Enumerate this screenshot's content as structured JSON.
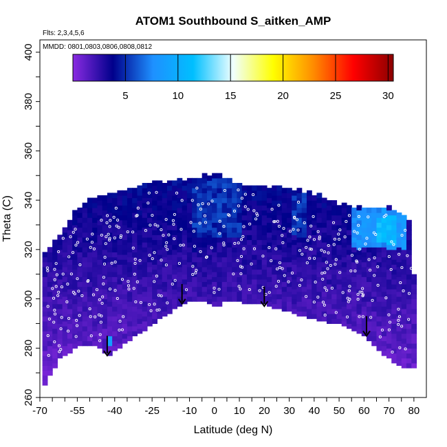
{
  "chart_data": {
    "type": "heatmap",
    "title": "ATOM1 Southbound S_aitken_AMP",
    "notes": {
      "flights": "Flts: 2,3,4,5,6",
      "dates": "MMDD: 0801,0803,0806,0808,0812"
    },
    "xlabel": "Latitude (deg N)",
    "ylabel": "Theta (C)",
    "xlim": [
      -70,
      85
    ],
    "ylim": [
      260,
      405
    ],
    "x_tick_labels": [
      "-70",
      "-55",
      "-40",
      "-25",
      "-10",
      "0",
      "10",
      "20",
      "30",
      "40",
      "50",
      "60",
      "70",
      "80"
    ],
    "y_tick_labels": [
      "260",
      "280",
      "300",
      "320",
      "340",
      "360",
      "380",
      "400"
    ],
    "colorbar": {
      "range": [
        0,
        30.5
      ],
      "tick_labels": [
        "5",
        "10",
        "15",
        "20",
        "25",
        "30"
      ],
      "colors": [
        "#8a2be2",
        "#00008b",
        "#1e90ff",
        "#00bfff",
        "#f0ffff",
        "#ffff00",
        "#ff8c00",
        "#ff0000",
        "#8b0000"
      ]
    },
    "bottom_boundary": [
      [
        -69,
        264
      ],
      [
        -62,
        276
      ],
      [
        -55,
        281
      ],
      [
        -47,
        282
      ],
      [
        -43,
        277
      ],
      [
        -35,
        283
      ],
      [
        -22,
        292
      ],
      [
        -13,
        298
      ],
      [
        -7,
        300
      ],
      [
        2,
        297
      ],
      [
        5,
        300
      ],
      [
        10,
        299
      ],
      [
        20,
        298
      ],
      [
        30,
        295
      ],
      [
        40,
        292
      ],
      [
        50,
        290
      ],
      [
        60,
        285
      ],
      [
        70,
        276
      ],
      [
        76,
        272
      ],
      [
        80,
        272
      ]
    ],
    "top_boundary": [
      [
        -69,
        318
      ],
      [
        -62,
        325
      ],
      [
        -56,
        335
      ],
      [
        -50,
        340
      ],
      [
        -40,
        342
      ],
      [
        -30,
        345
      ],
      [
        -20,
        347
      ],
      [
        -10,
        348
      ],
      [
        0,
        350
      ],
      [
        10,
        346
      ],
      [
        20,
        345
      ],
      [
        30,
        344
      ],
      [
        40,
        342
      ],
      [
        50,
        338
      ],
      [
        60,
        336
      ],
      [
        70,
        337
      ],
      [
        79,
        330
      ],
      [
        80,
        310
      ],
      [
        80,
        275
      ]
    ],
    "arrows": [
      [
        -43,
        281
      ],
      [
        -13,
        302
      ],
      [
        20,
        301
      ],
      [
        61,
        289
      ]
    ],
    "features": [
      {
        "x": [
          -10,
          10
        ],
        "y": [
          325,
          347
        ],
        "value": 6
      },
      {
        "x": [
          -20,
          0
        ],
        "y": [
          318,
          335
        ],
        "value": 4
      },
      {
        "x": [
          30,
          35
        ],
        "y": [
          325,
          342
        ],
        "value": 6
      },
      {
        "x": [
          55,
          75
        ],
        "y": [
          320,
          335
        ],
        "value": 9
      },
      {
        "x": [
          65,
          72
        ],
        "y": [
          322,
          332
        ],
        "value": 12
      },
      {
        "x": [
          -44,
          -42
        ],
        "y": [
          280,
          283
        ],
        "value": 9
      }
    ]
  }
}
